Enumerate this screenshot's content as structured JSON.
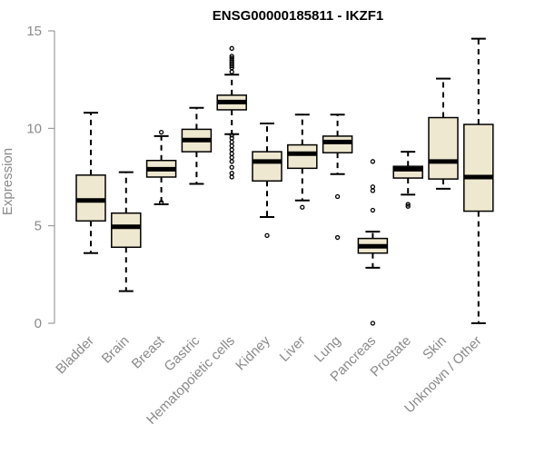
{
  "chart_data": {
    "type": "box",
    "title": "ENSG00000185811 - IKZF1",
    "xlabel": "",
    "ylabel": "Expression",
    "ylim": [
      0,
      15
    ],
    "yticks": [
      0,
      5,
      10,
      15
    ],
    "box_fill": "#efe8d0",
    "box_stroke": "#000000",
    "axis_color": "#8a8a8a",
    "categories": [
      "Bladder",
      "Brain",
      "Breast",
      "Gastric",
      "Hematopoietic cells",
      "Kidney",
      "Liver",
      "Lung",
      "Pancreas",
      "Prostate",
      "Skin",
      "Unknown / Other"
    ],
    "boxes": [
      {
        "min": 3.6,
        "q1": 5.25,
        "median": 6.3,
        "q3": 7.6,
        "max": 10.8,
        "outliers": []
      },
      {
        "min": 1.65,
        "q1": 3.9,
        "median": 4.95,
        "q3": 5.65,
        "max": 7.75,
        "outliers": []
      },
      {
        "min": 6.1,
        "q1": 7.5,
        "median": 7.9,
        "q3": 8.35,
        "max": 9.6,
        "outliers": [
          9.8,
          6.2
        ]
      },
      {
        "min": 7.15,
        "q1": 8.8,
        "median": 9.4,
        "q3": 9.95,
        "max": 11.05,
        "outliers": []
      },
      {
        "min": 9.7,
        "q1": 10.95,
        "median": 11.35,
        "q3": 11.7,
        "max": 12.75,
        "outliers": [
          14.1,
          13.7,
          13.6,
          13.5,
          13.4,
          13.3,
          13.2,
          13.1,
          12.9,
          9.65,
          9.5,
          9.3,
          9.1,
          8.9,
          8.7,
          8.5,
          8.3,
          8.0,
          7.7,
          7.5
        ]
      },
      {
        "min": 5.45,
        "q1": 7.3,
        "median": 8.3,
        "q3": 8.8,
        "max": 10.25,
        "outliers": [
          4.5
        ]
      },
      {
        "min": 6.3,
        "q1": 7.95,
        "median": 8.7,
        "q3": 9.15,
        "max": 10.7,
        "outliers": [
          5.95
        ]
      },
      {
        "min": 7.65,
        "q1": 8.75,
        "median": 9.3,
        "q3": 9.6,
        "max": 10.7,
        "outliers": [
          6.5,
          4.4
        ]
      },
      {
        "min": 2.85,
        "q1": 3.6,
        "median": 3.95,
        "q3": 4.35,
        "max": 4.7,
        "outliers": [
          8.3,
          7.0,
          6.8,
          5.8,
          0.0
        ]
      },
      {
        "min": 6.6,
        "q1": 7.45,
        "median": 7.9,
        "q3": 8.05,
        "max": 8.8,
        "outliers": [
          6.1,
          6.0
        ]
      },
      {
        "min": 6.9,
        "q1": 7.4,
        "median": 8.3,
        "q3": 10.55,
        "max": 12.55,
        "outliers": []
      },
      {
        "min": 0.0,
        "q1": 5.75,
        "median": 7.5,
        "q3": 10.2,
        "max": 14.6,
        "outliers": []
      }
    ]
  }
}
